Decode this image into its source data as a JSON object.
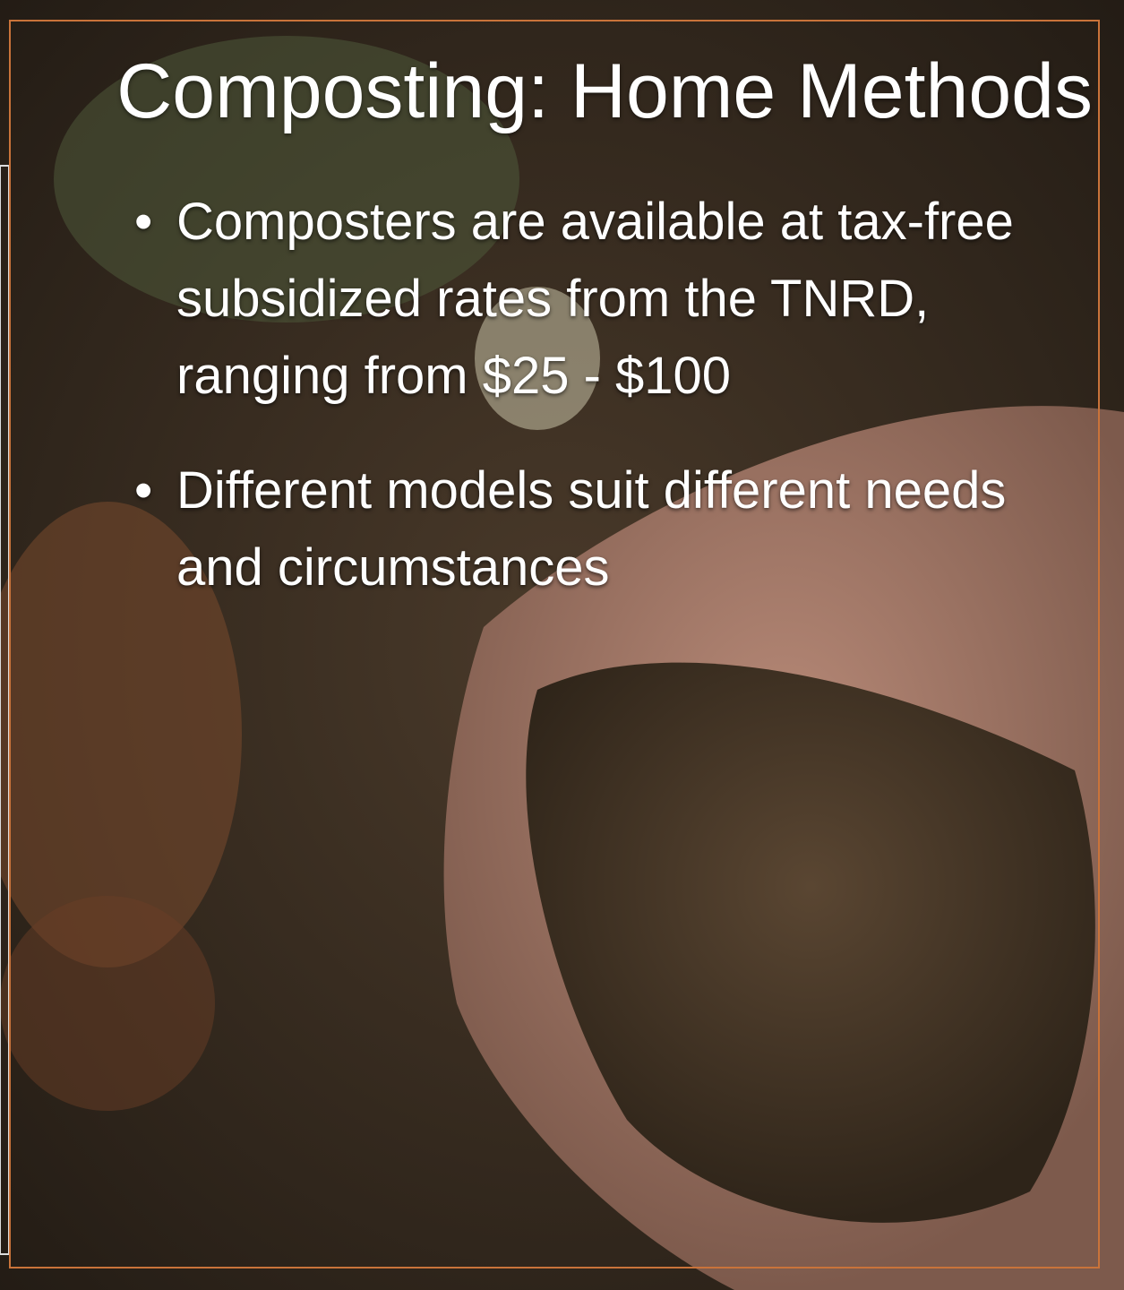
{
  "slide": {
    "title": "Composting: Home Methods",
    "bullets": [
      "Composters are available at tax-free subsidized rates from the TNRD, ranging from $25 - $100",
      "Different models suit different needs and circumstances"
    ]
  }
}
